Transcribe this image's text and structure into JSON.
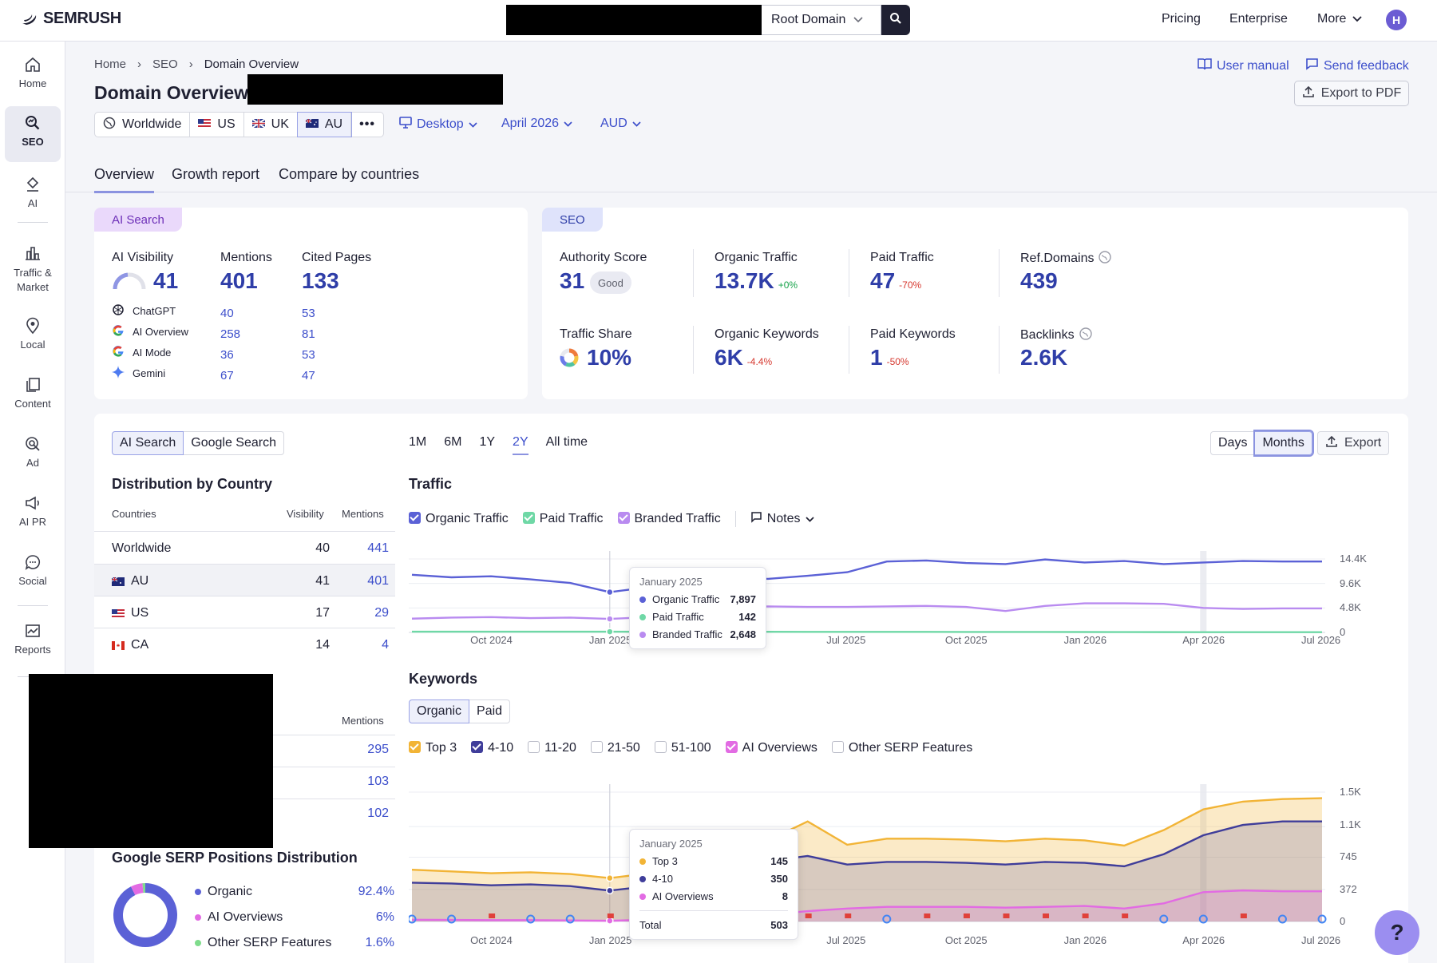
{
  "brand": {
    "name": "SEMRUSH"
  },
  "header": {
    "root_select": "Root Domain",
    "nav": [
      "Pricing",
      "Enterprise",
      "More"
    ],
    "avatar": "H"
  },
  "sidebar": {
    "items": [
      {
        "label": "Home",
        "icon": "home-icon"
      },
      {
        "label": "SEO",
        "icon": "seo-icon",
        "active": true
      },
      {
        "label": "AI",
        "icon": "ai-icon"
      },
      {
        "label": "Traffic &\nMarket",
        "icon": "chart-icon"
      },
      {
        "label": "Local",
        "icon": "pin-icon"
      },
      {
        "label": "Content",
        "icon": "content-icon"
      },
      {
        "label": "Ad",
        "icon": "ad-icon"
      },
      {
        "label": "AI PR",
        "icon": "megaphone-icon"
      },
      {
        "label": "Social",
        "icon": "social-icon"
      },
      {
        "label": "Reports",
        "icon": "reports-icon"
      }
    ]
  },
  "breadcrumb": [
    "Home",
    "SEO",
    "Domain Overview"
  ],
  "page_title": "Domain Overview:",
  "links": {
    "manual": "User manual",
    "feedback": "Send feedback",
    "export_pdf": "Export to PDF"
  },
  "region_tabs": [
    "Worldwide",
    "US",
    "UK",
    "AU"
  ],
  "filters": {
    "device": "Desktop",
    "date": "April 2026",
    "currency": "AUD"
  },
  "page_tabs": [
    "Overview",
    "Growth report",
    "Compare by countries"
  ],
  "ai_card": {
    "tag": "AI Search",
    "headers": [
      "AI Visibility",
      "Mentions",
      "Cited Pages"
    ],
    "totals": [
      "41",
      "401",
      "133"
    ],
    "rows": [
      {
        "name": "ChatGPT",
        "mentions": "40",
        "cited": "53"
      },
      {
        "name": "AI Overview",
        "mentions": "258",
        "cited": "81"
      },
      {
        "name": "AI Mode",
        "mentions": "36",
        "cited": "53"
      },
      {
        "name": "Gemini",
        "mentions": "67",
        "cited": "47"
      }
    ]
  },
  "seo_card": {
    "tag": "SEO",
    "metrics": [
      {
        "label": "Authority Score",
        "value": "31",
        "badge": "Good"
      },
      {
        "label": "Organic Traffic",
        "value": "13.7K",
        "delta": "+0%"
      },
      {
        "label": "Paid Traffic",
        "value": "47",
        "delta": "-70%"
      },
      {
        "label": "Ref.Domains",
        "value": "439"
      },
      {
        "label": "Traffic Share",
        "value": "10%"
      },
      {
        "label": "Organic Keywords",
        "value": "6K",
        "delta": "-4.4%"
      },
      {
        "label": "Paid Keywords",
        "value": "1",
        "delta": "-50%"
      },
      {
        "label": "Backlinks",
        "value": "2.6K"
      }
    ]
  },
  "left_panel": {
    "toggle": [
      "AI Search",
      "Google Search"
    ],
    "dist_title": "Distribution by Country",
    "columns": [
      "Countries",
      "Visibility",
      "Mentions"
    ],
    "rows": [
      {
        "country": "Worldwide",
        "visibility": "40",
        "mentions": "441"
      },
      {
        "country": "AU",
        "visibility": "41",
        "mentions": "401"
      },
      {
        "country": "US",
        "visibility": "17",
        "mentions": "29"
      },
      {
        "country": "CA",
        "visibility": "14",
        "mentions": "4"
      }
    ],
    "second_header": "Mentions",
    "second_values": [
      "295",
      "103",
      "102"
    ],
    "serp_title": "Google SERP Positions Distribution",
    "serp": [
      {
        "label": "Organic",
        "value": "92.4%",
        "color": "#5b61d6"
      },
      {
        "label": "AI Overviews",
        "value": "6%",
        "color": "#e26be3"
      },
      {
        "label": "Other SERP Features",
        "value": "1.6%",
        "color": "#7fdc8c"
      }
    ]
  },
  "range_tabs": [
    "1M",
    "6M",
    "1Y",
    "2Y",
    "All time"
  ],
  "view_toggle": [
    "Days",
    "Months"
  ],
  "export_label": "Export",
  "traffic": {
    "title": "Traffic",
    "legend": [
      "Organic Traffic",
      "Paid Traffic",
      "Branded Traffic"
    ],
    "notes": "Notes",
    "yticks": [
      "14.4K",
      "9.6K",
      "4.8K",
      "0"
    ],
    "xticks": [
      "Oct 2024",
      "Jan 2025",
      "Jul 2025",
      "Oct 2025",
      "Jan 2026",
      "Apr 2026",
      "Jul 2026"
    ],
    "tooltip": {
      "title": "January 2025",
      "rows": [
        {
          "label": "Organic Traffic",
          "value": "7,897"
        },
        {
          "label": "Paid Traffic",
          "value": "142"
        },
        {
          "label": "Branded Traffic",
          "value": "2,648"
        }
      ]
    }
  },
  "keywords": {
    "title": "Keywords",
    "toggle": [
      "Organic",
      "Paid"
    ],
    "legend": [
      "Top 3",
      "4-10",
      "11-20",
      "21-50",
      "51-100",
      "AI Overviews",
      "Other SERP Features"
    ],
    "yticks": [
      "1.5K",
      "1.1K",
      "745",
      "372",
      "0"
    ],
    "xticks": [
      "Oct 2024",
      "Jan 2025",
      "Jul 2025",
      "Oct 2025",
      "Jan 2026",
      "Apr 2026",
      "Jul 2026"
    ],
    "tooltip": {
      "title": "January 2025",
      "rows": [
        {
          "label": "Top 3",
          "value": "145"
        },
        {
          "label": "4-10",
          "value": "350"
        },
        {
          "label": "AI Overviews",
          "value": "8"
        }
      ],
      "total_label": "Total",
      "total_value": "503"
    }
  },
  "help": "?",
  "chart_data": [
    {
      "type": "line",
      "title": "Traffic",
      "x": [
        "2024-08",
        "2024-09",
        "2024-10",
        "2024-11",
        "2024-12",
        "2025-01",
        "2025-02",
        "2025-03",
        "2025-04",
        "2025-05",
        "2025-06",
        "2025-07",
        "2025-08",
        "2025-09",
        "2025-10",
        "2025-11",
        "2025-12",
        "2026-01",
        "2026-02",
        "2026-03",
        "2026-04",
        "2026-05",
        "2026-06",
        "2026-07"
      ],
      "ylim": [
        0,
        14400
      ],
      "series": [
        {
          "name": "Organic Traffic",
          "values": [
            11300,
            10800,
            11000,
            10400,
            9700,
            7897,
            8900,
            10200,
            10700,
            10500,
            11100,
            11800,
            13900,
            14100,
            13600,
            13400,
            14300,
            13700,
            14000,
            13400,
            13700,
            14000,
            13900,
            13900
          ]
        },
        {
          "name": "Paid Traffic",
          "values": [
            150,
            140,
            145,
            150,
            140,
            142,
            130,
            120,
            120,
            120,
            110,
            110,
            100,
            100,
            90,
            90,
            90,
            80,
            70,
            60,
            47,
            50,
            50,
            50
          ]
        },
        {
          "name": "Branded Traffic",
          "values": [
            2700,
            2900,
            3000,
            2800,
            2900,
            2648,
            3000,
            4600,
            4900,
            5100,
            5000,
            5000,
            5100,
            5200,
            5000,
            4200,
            5200,
            5700,
            5700,
            5600,
            4800,
            4600,
            4700,
            4700
          ]
        }
      ]
    },
    {
      "type": "area",
      "title": "Keywords",
      "x": [
        "2024-08",
        "2024-09",
        "2024-10",
        "2024-11",
        "2024-12",
        "2025-01",
        "2025-02",
        "2025-03",
        "2025-04",
        "2025-05",
        "2025-06",
        "2025-07",
        "2025-08",
        "2025-09",
        "2025-10",
        "2025-11",
        "2025-12",
        "2026-01",
        "2026-02",
        "2026-03",
        "2026-04",
        "2026-05",
        "2026-06",
        "2026-07"
      ],
      "ylim": [
        0,
        1500
      ],
      "series": [
        {
          "name": "Top 3",
          "values": [
            600,
            580,
            560,
            570,
            550,
            503,
            560,
            620,
            760,
            940,
            1160,
            890,
            960,
            960,
            950,
            930,
            960,
            940,
            880,
            1060,
            1300,
            1390,
            1420,
            1430
          ]
        },
        {
          "name": "4-10",
          "values": [
            450,
            440,
            420,
            430,
            410,
            358,
            410,
            460,
            580,
            700,
            760,
            660,
            690,
            690,
            680,
            660,
            690,
            680,
            640,
            780,
            1000,
            1120,
            1160,
            1160
          ]
        },
        {
          "name": "AI Overviews",
          "values": [
            20,
            18,
            15,
            15,
            12,
            8,
            20,
            40,
            60,
            80,
            120,
            150,
            170,
            170,
            170,
            160,
            170,
            180,
            150,
            210,
            340,
            360,
            350,
            350
          ]
        }
      ]
    }
  ]
}
